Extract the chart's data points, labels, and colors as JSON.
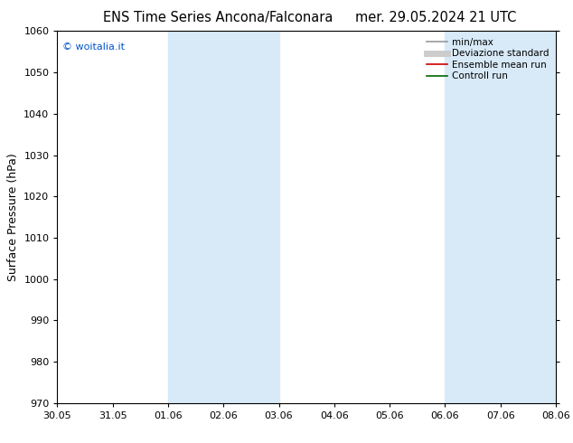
{
  "title_left": "ENS Time Series Ancona/Falconara",
  "title_right": "mer. 29.05.2024 21 UTC",
  "ylabel": "Surface Pressure (hPa)",
  "ylim": [
    970,
    1060
  ],
  "yticks": [
    970,
    980,
    990,
    1000,
    1010,
    1020,
    1030,
    1040,
    1050,
    1060
  ],
  "xtick_labels": [
    "30.05",
    "31.05",
    "01.06",
    "02.06",
    "03.06",
    "04.06",
    "05.06",
    "06.06",
    "07.06",
    "08.06"
  ],
  "watermark": "© woitalia.it",
  "watermark_color": "#0055cc",
  "bg_color": "#ffffff",
  "plot_bg_color": "#ffffff",
  "shade_color": "#d8eaf8",
  "shade_ranges": [
    [
      2,
      4
    ],
    [
      7,
      9
    ]
  ],
  "legend_entries": [
    {
      "label": "min/max",
      "color": "#999999",
      "lw": 1.2
    },
    {
      "label": "Deviazione standard",
      "color": "#cccccc",
      "lw": 5
    },
    {
      "label": "Ensemble mean run",
      "color": "#cc0000",
      "lw": 1.2
    },
    {
      "label": "Controll run",
      "color": "#006600",
      "lw": 1.2
    }
  ],
  "title_fontsize": 10.5,
  "tick_fontsize": 8,
  "ylabel_fontsize": 9,
  "legend_fontsize": 7.5
}
